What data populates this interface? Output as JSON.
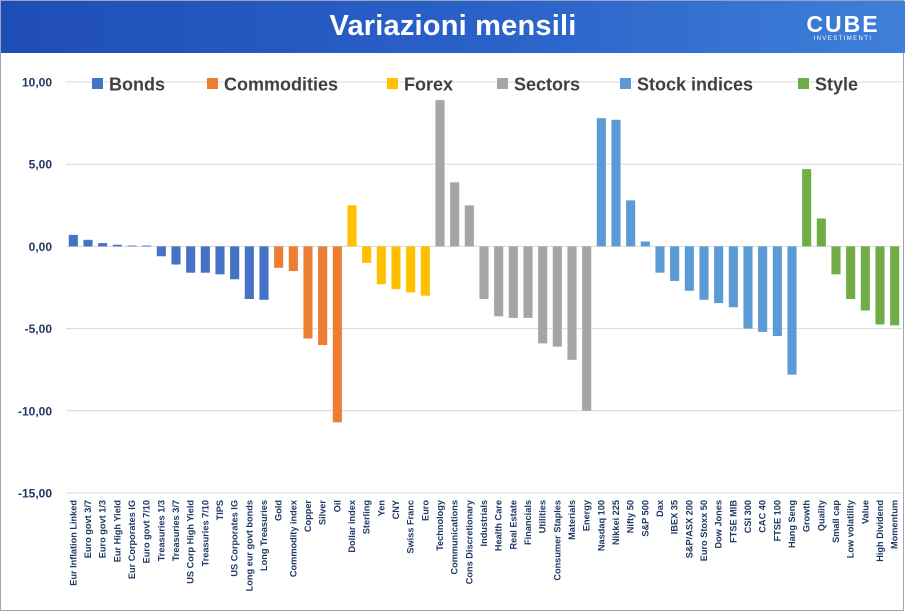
{
  "header": {
    "title": "Variazioni mensili",
    "logo_main": "CUBE",
    "logo_sub": "INVESTIMENTI"
  },
  "colors": {
    "Bonds": "#4472c4",
    "Commodities": "#ed7d31",
    "Forex": "#ffc000",
    "Sectors": "#a5a5a5",
    "Stock indices": "#5b9bd5",
    "Style": "#70ad47",
    "grid": "#d9d9d9",
    "header": "#2a62c9"
  },
  "chart_data": {
    "type": "bar",
    "ylim": [
      -15,
      10
    ],
    "yticks": [
      10,
      5,
      0,
      -5,
      -10,
      -15
    ],
    "ytick_labels": [
      "10,00",
      "5,00",
      "0,00",
      "-5,00",
      "-10,00",
      "-15,00"
    ],
    "grid": true,
    "legend_position": "top",
    "legend": [
      "Bonds",
      "Commodities",
      "Forex",
      "Sectors",
      "Stock indices",
      "Style"
    ],
    "categories": [
      "Eur Inflation Linked",
      "Euro govt 3/7",
      "Euro govt 1/3",
      "Eur High Yield",
      "Eur Corporates IG",
      "Euro govt 7/10",
      "Treasuries 1/3",
      "Treasuries 3/7",
      "US Corp High Yield",
      "Treasuries 7/10",
      "TIPS",
      "US Corporates IG",
      "Long eur govt bonds",
      "Long Treasuries",
      "Gold",
      "Commodity index",
      "Copper",
      "Silver",
      "Oil",
      "Dollar index",
      "Sterling",
      "Yen",
      "CNY",
      "Swiss Franc",
      "Euro",
      "Technology",
      "Communications",
      "Cons Discretionary",
      "Industrials",
      "Health Care",
      "Real Estate",
      "Financials",
      "Utilities",
      "Consumer Staples",
      "Materials",
      "Energy",
      "Nasdaq 100",
      "Nikkei 225",
      "Nifty 50",
      "S&P 500",
      "Dax",
      "IBEX 35",
      "S&P/ASX 200",
      "Euro Stoxx 50",
      "Dow Jones",
      "FTSE MIB",
      "CSI 300",
      "CAC 40",
      "FTSE 100",
      "Hang Seng",
      "Growth",
      "Quality",
      "Small cap",
      "Low volatility",
      "Value",
      "High Dividend",
      "Momentum"
    ],
    "values": [
      0.7,
      0.4,
      0.2,
      0.1,
      0.05,
      0.05,
      -0.6,
      -1.1,
      -1.6,
      -1.6,
      -1.7,
      -2.0,
      -3.2,
      -3.25,
      -1.3,
      -1.5,
      -5.6,
      -6.0,
      -10.7,
      2.5,
      -1.0,
      -2.3,
      -2.6,
      -2.8,
      -3.0,
      8.9,
      3.9,
      2.5,
      -3.2,
      -4.25,
      -4.35,
      -4.35,
      -5.9,
      -6.1,
      -6.9,
      -10.0,
      7.8,
      7.7,
      2.8,
      0.3,
      -1.6,
      -2.1,
      -2.7,
      -3.25,
      -3.45,
      -3.7,
      -5.0,
      -5.2,
      -5.45,
      -7.8,
      4.7,
      1.7,
      -1.7,
      -3.2,
      -3.9,
      -4.75,
      -4.8
    ],
    "groups": [
      "Bonds",
      "Bonds",
      "Bonds",
      "Bonds",
      "Bonds",
      "Bonds",
      "Bonds",
      "Bonds",
      "Bonds",
      "Bonds",
      "Bonds",
      "Bonds",
      "Bonds",
      "Bonds",
      "Commodities",
      "Commodities",
      "Commodities",
      "Commodities",
      "Commodities",
      "Forex",
      "Forex",
      "Forex",
      "Forex",
      "Forex",
      "Forex",
      "Sectors",
      "Sectors",
      "Sectors",
      "Sectors",
      "Sectors",
      "Sectors",
      "Sectors",
      "Sectors",
      "Sectors",
      "Sectors",
      "Sectors",
      "Stock indices",
      "Stock indices",
      "Stock indices",
      "Stock indices",
      "Stock indices",
      "Stock indices",
      "Stock indices",
      "Stock indices",
      "Stock indices",
      "Stock indices",
      "Stock indices",
      "Stock indices",
      "Stock indices",
      "Stock indices",
      "Style",
      "Style",
      "Style",
      "Style",
      "Style",
      "Style",
      "Style"
    ]
  }
}
